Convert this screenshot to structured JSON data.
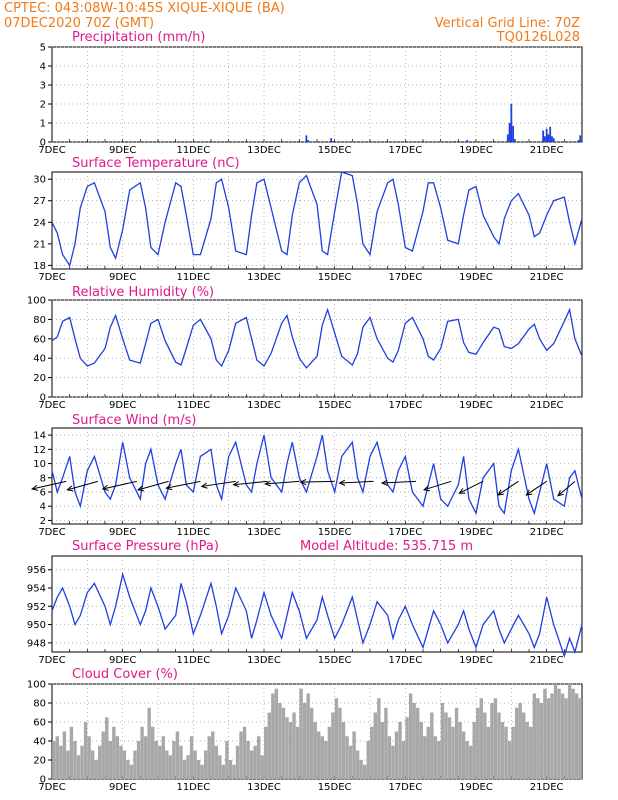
{
  "header": {
    "line1": "CPTEC:   043:08W-10:45S  XIQUE-XIQUE (BA)",
    "line2": "07DEC2020 70Z (GMT)",
    "grid_note": "Vertical Grid Line: 70Z",
    "run_id": "TQ0126L028"
  },
  "colors": {
    "header": "#f07a1a",
    "title": "#e0188c",
    "series": "#1f3fe0",
    "cloud": "#a8a8a8",
    "wind_arrow": "#000000"
  },
  "chart_data": [
    {
      "type": "bar",
      "title": "Precipitation (mm/h)",
      "ylim": [
        0,
        5
      ],
      "yticks": [
        "0",
        "1",
        "2",
        "3",
        "4",
        "5"
      ],
      "x": [
        14.2,
        14.25,
        14.9,
        14.95,
        18.4,
        18.75,
        19.9,
        19.95,
        20.0,
        20.05,
        20.1,
        20.9,
        20.95,
        21.0,
        21.05,
        21.1,
        21.15,
        21.2,
        21.9,
        21.95
      ],
      "values": [
        0.35,
        0.1,
        0.2,
        0.05,
        0.05,
        0.1,
        0.4,
        1.0,
        2.0,
        0.85,
        0.15,
        0.6,
        0.3,
        0.7,
        0.4,
        0.8,
        0.3,
        0.2,
        0.1,
        0.35
      ]
    },
    {
      "type": "line",
      "title": "Surface Temperature (nC)",
      "ylim": [
        17.5,
        31
      ],
      "yticks": [
        "18",
        "21",
        "24",
        "27",
        "30"
      ],
      "x": [
        7.0,
        7.15,
        7.3,
        7.5,
        7.65,
        7.8,
        8.0,
        8.2,
        8.5,
        8.65,
        8.8,
        9.0,
        9.2,
        9.5,
        9.65,
        9.8,
        10.0,
        10.2,
        10.5,
        10.65,
        10.8,
        11.0,
        11.2,
        11.5,
        11.65,
        11.8,
        12.0,
        12.2,
        12.5,
        12.65,
        12.8,
        13.0,
        13.2,
        13.5,
        13.65,
        13.8,
        14.0,
        14.2,
        14.5,
        14.65,
        14.8,
        15.0,
        15.2,
        15.5,
        15.65,
        15.8,
        16.0,
        16.2,
        16.5,
        16.65,
        16.8,
        17.0,
        17.2,
        17.5,
        17.65,
        17.8,
        18.0,
        18.2,
        18.5,
        18.65,
        18.8,
        19.0,
        19.2,
        19.5,
        19.65,
        19.8,
        20.0,
        20.2,
        20.5,
        20.65,
        20.8,
        21.0,
        21.2,
        21.5,
        21.65,
        21.8,
        22.0
      ],
      "values": [
        24.0,
        22.5,
        19.5,
        18.0,
        21.0,
        26.0,
        29.0,
        29.5,
        25.5,
        20.5,
        19.0,
        23.0,
        28.5,
        29.5,
        26.0,
        20.5,
        19.5,
        24.0,
        29.5,
        29.0,
        25.0,
        19.5,
        19.5,
        24.5,
        29.5,
        30.0,
        26.0,
        20.0,
        19.5,
        25.0,
        29.5,
        30.0,
        26.0,
        20.0,
        19.5,
        25.0,
        29.5,
        30.5,
        26.5,
        20.0,
        19.5,
        25.5,
        31.0,
        30.5,
        26.5,
        21.0,
        19.5,
        25.5,
        29.5,
        30.0,
        26.5,
        20.5,
        20.0,
        25.5,
        29.5,
        29.5,
        26.0,
        21.5,
        21.0,
        25.0,
        28.5,
        29.0,
        25.0,
        22.0,
        21.0,
        24.5,
        27.0,
        28.0,
        25.0,
        22.0,
        22.5,
        25.0,
        27.0,
        27.5,
        24.0,
        21.0,
        24.5
      ],
      "xtick_labels": [
        "7DEC",
        "9DEC",
        "11DEC",
        "13DEC",
        "15DEC",
        "17DEC",
        "19DEC",
        "21DEC"
      ]
    },
    {
      "type": "line",
      "title": "Relative Humidity (%)",
      "ylim": [
        0,
        100
      ],
      "yticks": [
        "0",
        "20",
        "40",
        "60",
        "80",
        "100"
      ],
      "x": [
        7.0,
        7.15,
        7.3,
        7.5,
        7.65,
        7.8,
        8.0,
        8.2,
        8.5,
        8.65,
        8.8,
        9.0,
        9.2,
        9.5,
        9.65,
        9.8,
        10.0,
        10.2,
        10.5,
        10.65,
        10.8,
        11.0,
        11.2,
        11.5,
        11.65,
        11.8,
        12.0,
        12.2,
        12.5,
        12.65,
        12.8,
        13.0,
        13.2,
        13.5,
        13.65,
        13.8,
        14.0,
        14.2,
        14.5,
        14.65,
        14.8,
        15.0,
        15.2,
        15.5,
        15.65,
        15.8,
        16.0,
        16.2,
        16.5,
        16.65,
        16.8,
        17.0,
        17.2,
        17.5,
        17.65,
        17.8,
        18.0,
        18.2,
        18.5,
        18.65,
        18.8,
        19.0,
        19.2,
        19.5,
        19.65,
        19.8,
        20.0,
        20.2,
        20.5,
        20.65,
        20.8,
        21.0,
        21.2,
        21.5,
        21.65,
        21.8,
        22.0
      ],
      "values": [
        58,
        62,
        78,
        82,
        60,
        40,
        32,
        35,
        50,
        72,
        84,
        60,
        38,
        35,
        55,
        76,
        80,
        58,
        36,
        33,
        50,
        74,
        80,
        60,
        38,
        32,
        48,
        76,
        82,
        60,
        38,
        32,
        45,
        76,
        84,
        62,
        40,
        30,
        42,
        74,
        90,
        66,
        42,
        33,
        45,
        72,
        82,
        60,
        40,
        36,
        48,
        76,
        82,
        60,
        42,
        38,
        50,
        78,
        80,
        56,
        46,
        44,
        56,
        72,
        70,
        52,
        50,
        55,
        70,
        75,
        60,
        48,
        55,
        78,
        90,
        60,
        42
      ],
      "xtick_labels": [
        "7DEC",
        "9DEC",
        "11DEC",
        "13DEC",
        "15DEC",
        "17DEC",
        "19DEC",
        "21DEC"
      ]
    },
    {
      "type": "line",
      "title": "Surface Wind (m/s)",
      "ylim": [
        1.5,
        15
      ],
      "yticks": [
        "2",
        "4",
        "6",
        "8",
        "10",
        "12",
        "14"
      ],
      "x": [
        7.0,
        7.15,
        7.3,
        7.5,
        7.65,
        7.8,
        8.0,
        8.2,
        8.5,
        8.65,
        8.8,
        9.0,
        9.2,
        9.5,
        9.65,
        9.8,
        10.0,
        10.2,
        10.5,
        10.65,
        10.8,
        11.0,
        11.2,
        11.5,
        11.65,
        11.8,
        12.0,
        12.2,
        12.5,
        12.65,
        12.8,
        13.0,
        13.2,
        13.5,
        13.65,
        13.8,
        14.0,
        14.2,
        14.5,
        14.65,
        14.8,
        15.0,
        15.2,
        15.5,
        15.65,
        15.8,
        16.0,
        16.2,
        16.5,
        16.65,
        16.8,
        17.0,
        17.2,
        17.5,
        17.65,
        17.8,
        18.0,
        18.2,
        18.5,
        18.65,
        18.8,
        19.0,
        19.2,
        19.5,
        19.65,
        19.8,
        20.0,
        20.2,
        20.5,
        20.65,
        20.8,
        21.0,
        21.2,
        21.5,
        21.65,
        21.8,
        22.0
      ],
      "values": [
        9,
        6,
        8,
        11,
        6,
        4,
        9,
        11,
        6,
        5,
        7,
        13,
        8,
        5,
        10,
        12,
        7,
        5,
        10,
        12,
        7,
        6,
        11,
        12,
        7,
        5,
        11,
        13,
        7,
        6,
        10,
        14,
        8,
        6,
        10,
        13,
        8,
        6,
        11,
        14,
        9,
        6,
        11,
        13,
        8,
        6,
        11,
        13,
        7,
        6,
        9,
        11,
        6,
        4,
        7,
        10,
        5,
        4,
        7,
        11,
        5,
        3,
        8,
        10,
        4,
        3,
        9,
        12,
        5,
        3,
        6,
        10,
        5,
        4,
        8,
        9,
        5
      ],
      "xtick_labels": [
        "7DEC",
        "9DEC",
        "11DEC",
        "13DEC",
        "15DEC",
        "17DEC",
        "19DEC",
        "21DEC"
      ]
    },
    {
      "type": "line",
      "title": "Surface Pressure (hPa)",
      "annotation": "Model Altitude: 535.715  m",
      "ylim": [
        947,
        957.5
      ],
      "yticks": [
        "948",
        "950",
        "952",
        "954",
        "956"
      ],
      "x": [
        7.0,
        7.15,
        7.3,
        7.5,
        7.65,
        7.8,
        8.0,
        8.2,
        8.5,
        8.65,
        8.8,
        9.0,
        9.2,
        9.5,
        9.65,
        9.8,
        10.0,
        10.2,
        10.5,
        10.65,
        10.8,
        11.0,
        11.2,
        11.5,
        11.65,
        11.8,
        12.0,
        12.2,
        12.5,
        12.65,
        12.8,
        13.0,
        13.2,
        13.5,
        13.65,
        13.8,
        14.0,
        14.2,
        14.5,
        14.65,
        14.8,
        15.0,
        15.2,
        15.5,
        15.65,
        15.8,
        16.0,
        16.2,
        16.5,
        16.65,
        16.8,
        17.0,
        17.2,
        17.5,
        17.65,
        17.8,
        18.0,
        18.2,
        18.5,
        18.65,
        18.8,
        19.0,
        19.2,
        19.5,
        19.65,
        19.8,
        20.0,
        20.2,
        20.5,
        20.65,
        20.8,
        21.0,
        21.2,
        21.5,
        21.65,
        21.8,
        22.0
      ],
      "values": [
        951.5,
        953,
        954,
        952,
        950,
        951,
        953.5,
        954.5,
        952,
        950,
        952,
        955.5,
        953,
        950,
        951.5,
        954,
        952,
        949.5,
        951,
        954.5,
        952.5,
        949,
        951,
        954.5,
        952,
        949,
        951,
        954,
        951.5,
        948.5,
        950.5,
        953.5,
        951,
        948.5,
        951,
        953.5,
        951.5,
        948.5,
        950.5,
        953,
        951,
        948.5,
        950,
        953,
        950.5,
        948,
        950,
        952.5,
        951,
        948.5,
        950.5,
        952,
        950,
        947.5,
        949.5,
        951.5,
        950,
        948,
        950,
        951.5,
        949.5,
        947.5,
        950,
        951.5,
        949.5,
        948,
        949.5,
        951,
        949,
        947.5,
        949,
        953,
        950,
        946.5,
        948.5,
        947,
        950
      ],
      "xtick_labels": [
        "7DEC",
        "9DEC",
        "11DEC",
        "13DEC",
        "15DEC",
        "17DEC",
        "19DEC",
        "21DEC"
      ]
    },
    {
      "type": "bar",
      "title": "Cloud Cover (%)",
      "ylim": [
        0,
        100
      ],
      "yticks": [
        "0",
        "20",
        "40",
        "60",
        "80",
        "100"
      ],
      "x": [
        7.05,
        7.15,
        7.25,
        7.35,
        7.45,
        7.55,
        7.65,
        7.75,
        7.85,
        7.95,
        8.05,
        8.15,
        8.25,
        8.35,
        8.45,
        8.55,
        8.65,
        8.75,
        8.85,
        8.95,
        9.05,
        9.15,
        9.25,
        9.35,
        9.45,
        9.55,
        9.65,
        9.75,
        9.85,
        9.95,
        10.05,
        10.15,
        10.25,
        10.35,
        10.45,
        10.55,
        10.65,
        10.75,
        10.85,
        10.95,
        11.05,
        11.15,
        11.25,
        11.35,
        11.45,
        11.55,
        11.65,
        11.75,
        11.85,
        11.95,
        12.05,
        12.15,
        12.25,
        12.35,
        12.45,
        12.55,
        12.65,
        12.75,
        12.85,
        12.95,
        13.05,
        13.15,
        13.25,
        13.35,
        13.45,
        13.55,
        13.65,
        13.75,
        13.85,
        13.95,
        14.05,
        14.15,
        14.25,
        14.35,
        14.45,
        14.55,
        14.65,
        14.75,
        14.85,
        14.95,
        15.05,
        15.15,
        15.25,
        15.35,
        15.45,
        15.55,
        15.65,
        15.75,
        15.85,
        15.95,
        16.05,
        16.15,
        16.25,
        16.35,
        16.45,
        16.55,
        16.65,
        16.75,
        16.85,
        16.95,
        17.05,
        17.15,
        17.25,
        17.35,
        17.45,
        17.55,
        17.65,
        17.75,
        17.85,
        17.95,
        18.05,
        18.15,
        18.25,
        18.35,
        18.45,
        18.55,
        18.65,
        18.75,
        18.85,
        18.95,
        19.05,
        19.15,
        19.25,
        19.35,
        19.45,
        19.55,
        19.65,
        19.75,
        19.85,
        19.95,
        20.05,
        20.15,
        20.25,
        20.35,
        20.45,
        20.55,
        20.65,
        20.75,
        20.85,
        20.95,
        21.05,
        21.15,
        21.25,
        21.35,
        21.45,
        21.55,
        21.65,
        21.75,
        21.85,
        21.95
      ],
      "values": [
        40,
        45,
        35,
        50,
        30,
        55,
        40,
        25,
        35,
        60,
        45,
        30,
        20,
        35,
        50,
        65,
        40,
        55,
        45,
        35,
        30,
        20,
        15,
        30,
        40,
        55,
        45,
        75,
        55,
        40,
        35,
        45,
        30,
        25,
        40,
        50,
        35,
        20,
        25,
        45,
        30,
        20,
        15,
        30,
        45,
        50,
        35,
        25,
        15,
        40,
        20,
        15,
        35,
        50,
        55,
        40,
        30,
        35,
        45,
        25,
        55,
        70,
        90,
        95,
        80,
        75,
        65,
        60,
        70,
        55,
        95,
        80,
        90,
        75,
        60,
        50,
        45,
        40,
        55,
        70,
        85,
        75,
        60,
        45,
        35,
        50,
        30,
        20,
        15,
        40,
        55,
        70,
        85,
        60,
        75,
        45,
        35,
        50,
        60,
        40,
        65,
        90,
        80,
        75,
        60,
        45,
        55,
        70,
        45,
        40,
        80,
        70,
        65,
        55,
        75,
        60,
        50,
        40,
        35,
        60,
        75,
        85,
        70,
        55,
        80,
        85,
        70,
        60,
        55,
        40,
        55,
        75,
        80,
        70,
        60,
        55,
        90,
        85,
        80,
        95,
        85,
        90,
        100,
        95,
        90,
        85,
        100,
        95,
        90,
        85
      ],
      "xtick_labels": [
        "7DEC",
        "9DEC",
        "11DEC",
        "13DEC",
        "15DEC",
        "17DEC",
        "19DEC",
        "21DEC"
      ]
    }
  ],
  "wind_arrows": [
    {
      "day": 7.4,
      "u": -1,
      "v": 0.45
    },
    {
      "day": 8.3,
      "u": -0.9,
      "v": 0.5
    },
    {
      "day": 9.4,
      "u": -1,
      "v": 0.45
    },
    {
      "day": 10.3,
      "u": -0.9,
      "v": 0.5
    },
    {
      "day": 11.2,
      "u": -1,
      "v": 0.4
    },
    {
      "day": 12.2,
      "u": -1,
      "v": 0.3
    },
    {
      "day": 13.1,
      "u": -1,
      "v": 0.2
    },
    {
      "day": 14.0,
      "u": -1,
      "v": 0.15
    },
    {
      "day": 15.0,
      "u": -1,
      "v": 0.05
    },
    {
      "day": 16.1,
      "u": -1,
      "v": 0.1
    },
    {
      "day": 17.3,
      "u": -1,
      "v": 0.1
    },
    {
      "day": 18.3,
      "u": -0.8,
      "v": 0.5
    },
    {
      "day": 19.2,
      "u": -0.7,
      "v": 0.7
    },
    {
      "day": 20.2,
      "u": -0.6,
      "v": 0.8
    },
    {
      "day": 21.0,
      "u": -0.6,
      "v": 0.8
    },
    {
      "day": 21.8,
      "u": -0.5,
      "v": 0.85
    }
  ]
}
